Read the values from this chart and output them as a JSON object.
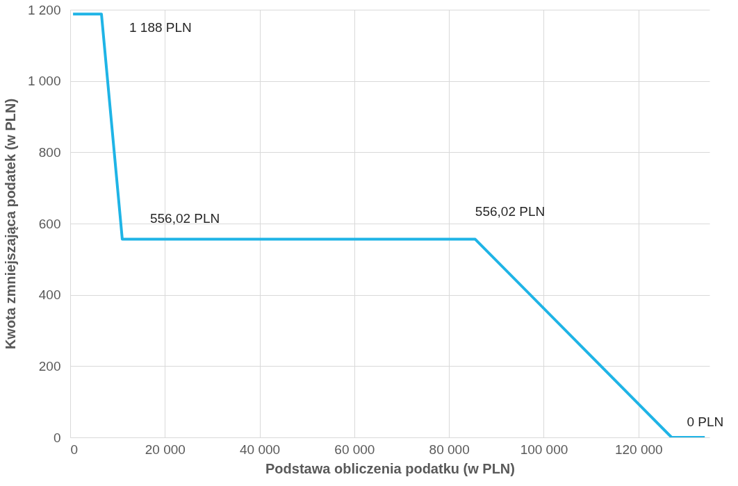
{
  "chart_data": {
    "type": "line",
    "xlabel": "Podstawa obliczenia  podatku (w PLN)",
    "ylabel": "Kwota zmniejszająca  podatek (w PLN)",
    "x": [
      600,
      6600,
      11000,
      85528,
      127000,
      134000
    ],
    "series": [
      {
        "color": "#1fb4e6",
        "values": [
          1188,
          1188,
          556.02,
          556.02,
          0,
          0
        ]
      }
    ],
    "xlim": [
      0,
      135000
    ],
    "xticks": [
      0,
      {
        "value": 20000,
        "label": "20 000"
      },
      {
        "value": 40000,
        "label": "40 000"
      },
      {
        "value": 60000,
        "label": "60 000"
      },
      {
        "value": 80000,
        "label": "80 000"
      },
      {
        "value": 100000,
        "label": "100 000"
      },
      {
        "value": 120000,
        "label": "120 000"
      }
    ],
    "ylim": [
      0,
      1200
    ],
    "yticks": [
      0,
      200,
      400,
      600,
      800,
      {
        "value": 1000,
        "label": "1 000"
      },
      {
        "value": 1200,
        "label": "1 200"
      }
    ],
    "grid": true,
    "marker": "none",
    "line_style": "solid",
    "annotations": [
      {
        "text": "1 188 PLN",
        "x": 6600,
        "y": 1188
      },
      {
        "text": "556,02 PLN",
        "x": 11000,
        "y": 556.02
      },
      {
        "text": "556,02 PLN",
        "x": 85528,
        "y": 556.02
      },
      {
        "text": "0 PLN",
        "x": 127000,
        "y": 0
      }
    ]
  }
}
